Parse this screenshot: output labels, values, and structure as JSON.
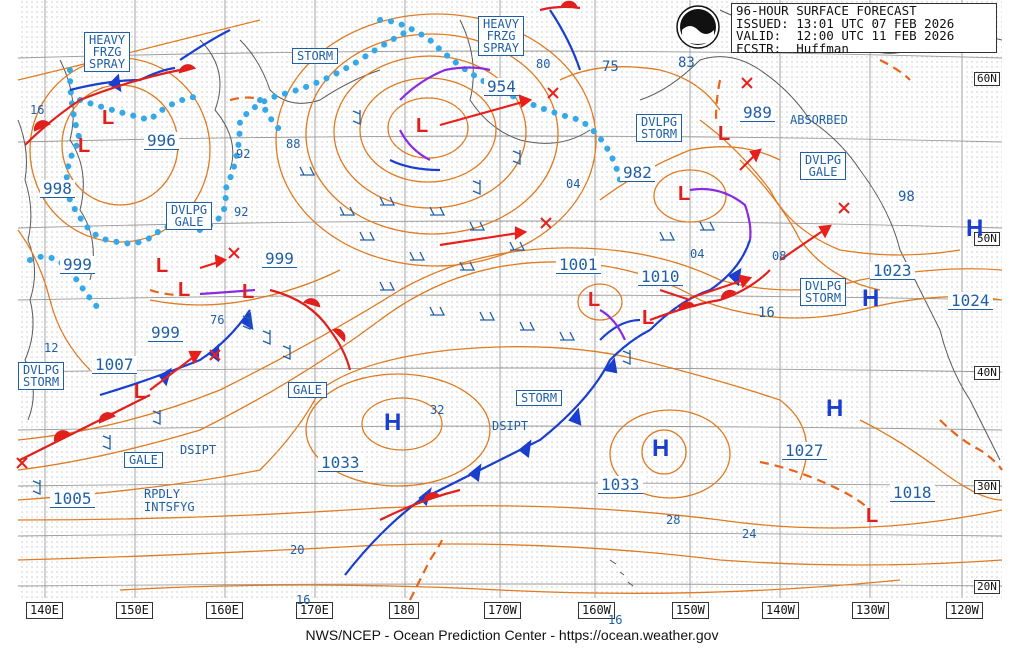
{
  "header": {
    "line1": "96-HOUR SURFACE FORECAST",
    "line2": "ISSUED: 13:01 UTC 07 FEB 2026",
    "line3": "VALID:  12:00 UTC 11 FEB 2026",
    "line4": "FCSTR:  Huffman"
  },
  "logo_text": "NOAA",
  "footer": "NWS/NCEP - Ocean Prediction Center - https://ocean.weather.gov",
  "longitude_labels": [
    "140E",
    "150E",
    "160E",
    "170E",
    "180",
    "170W",
    "160W",
    "150W",
    "140W",
    "130W",
    "120W"
  ],
  "latitude_labels": [
    "60N",
    "50N",
    "40N",
    "30N",
    "20N"
  ],
  "warnings": [
    "HEAVY\nFRZG\nSPRAY",
    "STORM",
    "HEAVY\nFRZG\nSPRAY",
    "DVLPG\nSTORM",
    "DVLPG\nGALE",
    "DVLPG\nGALE",
    "DVLPG\nSTORM",
    "DVLPG\nSTORM",
    "GALE",
    "STORM",
    "GALE"
  ],
  "pressure_values": [
    "996",
    "998",
    "999",
    "999",
    "999",
    "1007",
    "1005",
    "954",
    "982",
    "989",
    "1001",
    "1010",
    "1033",
    "1033",
    "1027",
    "1023",
    "1024",
    "1018"
  ],
  "isobar_labels": [
    "16",
    "92",
    "88",
    "92",
    "76",
    "12",
    "80",
    "75",
    "83",
    "04",
    "04",
    "08",
    "16",
    "98",
    "32",
    "20",
    "16",
    "28",
    "24",
    "16"
  ],
  "highs_label": "H",
  "lows_label": "L",
  "annotations": [
    "ABSORBED",
    "DSIPT",
    "DSIPT",
    "RPDLY\nINTSFYG"
  ],
  "colors": {
    "isobar": "#e07b22",
    "grid": "#9a9a9a",
    "coast": "#555555",
    "cold_front": "#1a3fcf",
    "warm_front": "#e0201c",
    "occluded": "#8a2be2",
    "icing": "#35a8e8",
    "track": "#e8201c",
    "label_blue": "#1f5fa8",
    "highs": "#1a3fcf"
  }
}
